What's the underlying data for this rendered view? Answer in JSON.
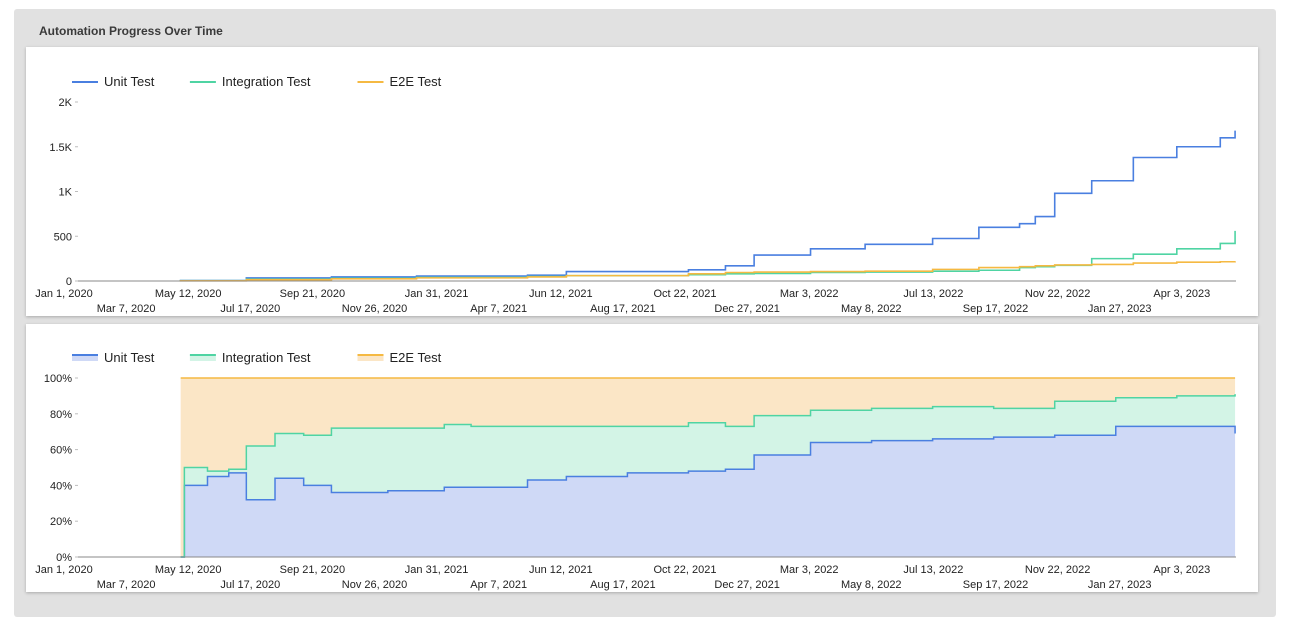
{
  "panel": {
    "title": "Automation Progress Over Time"
  },
  "colors": {
    "unit": "#4a7fe0",
    "integration": "#4fd4a3",
    "e2e": "#f5b942",
    "unit_fill": "#cfd9f6",
    "integration_fill": "#d3f4e6",
    "e2e_fill": "#fbe6c6",
    "axis": "#5f6368",
    "text": "#222222"
  },
  "x_ticks_upper": [
    "Jan 1, 2020",
    "May 12, 2020",
    "Sep 21, 2020",
    "Jan 31, 2021",
    "Jun 12, 2021",
    "Oct 22, 2021",
    "Mar 3, 2022",
    "Jul 13, 2022",
    "Nov 22, 2022",
    "Apr 3, 2023"
  ],
  "x_ticks_lower": [
    "Mar 7, 2020",
    "Jul 17, 2020",
    "Nov 26, 2020",
    "Apr 7, 2021",
    "Aug 17, 2021",
    "Dec 27, 2021",
    "May 8, 2022",
    "Sep 17, 2022",
    "Jan 27, 2023"
  ],
  "chart_data": [
    {
      "type": "line",
      "title": "Automation Progress Over Time",
      "legend_position": "top-left",
      "y_ticks": [
        "0",
        "500",
        "1K",
        "1.5K",
        "2K"
      ],
      "ylim": [
        0,
        2000
      ],
      "xlim": [
        "2020-01-01",
        "2023-06-06"
      ],
      "x": [
        "2020-04-20",
        "2020-07-01",
        "2020-10-01",
        "2021-01-01",
        "2021-05-01",
        "2021-06-12",
        "2021-10-22",
        "2021-12-01",
        "2022-01-01",
        "2022-03-03",
        "2022-05-01",
        "2022-07-13",
        "2022-09-01",
        "2022-10-15",
        "2022-11-01",
        "2022-11-22",
        "2023-01-01",
        "2023-02-15",
        "2023-04-03",
        "2023-05-20",
        "2023-06-05"
      ],
      "series": [
        {
          "name": "Unit Test",
          "values": [
            5,
            35,
            45,
            55,
            65,
            105,
            125,
            170,
            290,
            360,
            410,
            475,
            600,
            640,
            720,
            980,
            1120,
            1380,
            1500,
            1600,
            1680
          ]
        },
        {
          "name": "Integration Test",
          "values": [
            3,
            20,
            30,
            40,
            50,
            60,
            70,
            80,
            85,
            95,
            100,
            110,
            120,
            150,
            160,
            175,
            250,
            300,
            360,
            420,
            560
          ]
        },
        {
          "name": "E2E Test",
          "values": [
            2,
            15,
            25,
            35,
            45,
            60,
            80,
            95,
            100,
            105,
            110,
            130,
            150,
            160,
            170,
            180,
            185,
            200,
            210,
            215,
            220
          ]
        }
      ]
    },
    {
      "type": "area",
      "stacked": "percent",
      "legend_position": "top-left",
      "y_ticks": [
        "0%",
        "20%",
        "40%",
        "60%",
        "80%",
        "100%"
      ],
      "ylim": [
        0,
        100
      ],
      "xlim": [
        "2020-01-01",
        "2023-06-06"
      ],
      "x": [
        "2020-04-21",
        "2020-04-25",
        "2020-05-20",
        "2020-06-12",
        "2020-07-01",
        "2020-08-01",
        "2020-09-01",
        "2020-10-01",
        "2020-12-01",
        "2021-01-31",
        "2021-03-01",
        "2021-05-01",
        "2021-06-12",
        "2021-08-17",
        "2021-10-22",
        "2021-12-01",
        "2022-01-01",
        "2022-03-03",
        "2022-05-08",
        "2022-07-13",
        "2022-09-17",
        "2022-11-22",
        "2023-01-27",
        "2023-04-03",
        "2023-06-05"
      ],
      "series": [
        {
          "name": "Unit Test",
          "values": [
            0,
            40,
            45,
            47,
            32,
            44,
            40,
            36,
            37,
            39,
            39,
            43,
            45,
            47,
            48,
            49,
            57,
            64,
            65,
            66,
            67,
            68,
            73,
            73,
            69
          ]
        },
        {
          "name": "Integration Test",
          "values": [
            0,
            10,
            3,
            2,
            30,
            25,
            28,
            36,
            35,
            35,
            34,
            30,
            28,
            26,
            27,
            24,
            22,
            18,
            18,
            18,
            16,
            19,
            16,
            17,
            22
          ]
        },
        {
          "name": "E2E Test",
          "values": [
            100,
            50,
            52,
            51,
            38,
            31,
            32,
            28,
            28,
            26,
            27,
            27,
            27,
            27,
            25,
            27,
            21,
            18,
            17,
            16,
            17,
            13,
            11,
            10,
            9
          ]
        }
      ]
    }
  ]
}
